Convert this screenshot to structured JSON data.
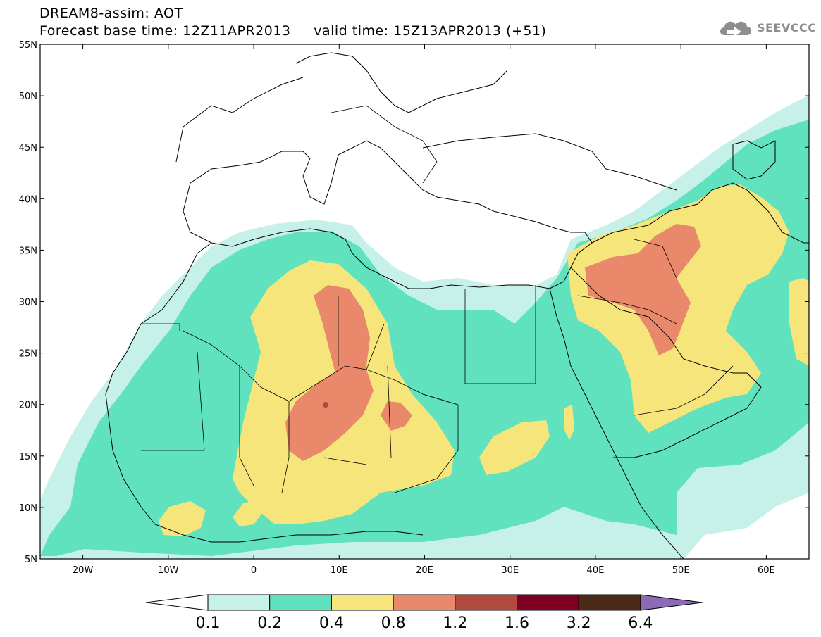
{
  "header": {
    "line1": "DREAM8-assim: AOT",
    "line2": "Forecast base time: 12Z11APR2013     valid time: 15Z13APR2013 (+51)"
  },
  "logo": {
    "text": "SEEVCCC",
    "icon": "cloud-logo-icon",
    "color": "#8e8e8e"
  },
  "map": {
    "lat_labels": [
      "55N",
      "50N",
      "45N",
      "40N",
      "35N",
      "30N",
      "25N",
      "20N",
      "15N",
      "10N",
      "5N"
    ],
    "lat_values": [
      55,
      50,
      45,
      40,
      35,
      30,
      25,
      20,
      15,
      10,
      5
    ],
    "lon_labels": [
      "20W",
      "10W",
      "0",
      "10E",
      "20E",
      "30E",
      "40E",
      "50E",
      "60E"
    ],
    "lon_values": [
      -20,
      -10,
      0,
      10,
      20,
      30,
      40,
      50,
      60
    ],
    "lon_range": [
      -25,
      65
    ],
    "lat_range": [
      5,
      55
    ]
  },
  "colorbar": {
    "labels": [
      "0.1",
      "0.2",
      "0.4",
      "0.8",
      "1.2",
      "1.6",
      "3.2",
      "6.4"
    ],
    "colors": [
      "#ffffff",
      "#c6f1e9",
      "#5fe2bd",
      "#f6e57a",
      "#e9886a",
      "#b04a3f",
      "#7e0023",
      "#4b2a17",
      "#8b6bb5"
    ]
  }
}
